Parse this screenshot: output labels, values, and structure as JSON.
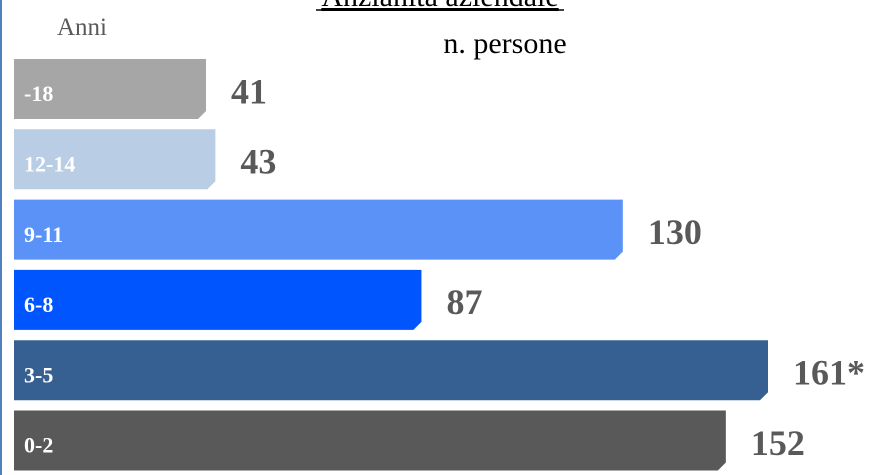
{
  "chart_data": {
    "type": "bar",
    "orientation": "horizontal",
    "title": "Anzianità aziendale",
    "subtitle": "n. persone",
    "axis_label": "Anni",
    "categories": [
      "-18",
      "12-14",
      "9-11",
      "6-8",
      "3-5",
      "0-2"
    ],
    "values": [
      41,
      43,
      130,
      87,
      161,
      152
    ],
    "value_labels": [
      "41",
      "43",
      "130",
      "87",
      "161*",
      "152"
    ],
    "colors": [
      "#a6a6a6",
      "#b9cde5",
      "#5a92f7",
      "#0055ff",
      "#376092",
      "#595959"
    ]
  }
}
